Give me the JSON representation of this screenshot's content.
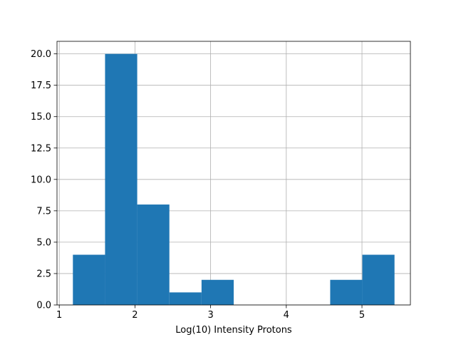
{
  "chart_data": {
    "type": "bar",
    "subtype": "histogram",
    "title": "",
    "xlabel": "Log(10) Intensity Protons",
    "ylabel": "",
    "xlim": [
      0.97,
      5.64
    ],
    "ylim": [
      0,
      21
    ],
    "grid": true,
    "legend": "none",
    "bar_color": "#1f77b4",
    "grid_color": "#b0b0b0",
    "x_ticks": [
      1,
      2,
      3,
      4,
      5
    ],
    "x_tick_labels": [
      "1",
      "2",
      "3",
      "4",
      "5"
    ],
    "y_ticks": [
      0,
      2.5,
      5,
      7.5,
      10,
      12.5,
      15,
      17.5,
      20
    ],
    "y_tick_labels": [
      "0.0",
      "2.5",
      "5.0",
      "7.5",
      "10.0",
      "12.5",
      "15.0",
      "17.5",
      "20.0"
    ],
    "bins": [
      {
        "x0": 1.18,
        "x1": 1.605,
        "count": 4
      },
      {
        "x0": 1.605,
        "x1": 2.03,
        "count": 20
      },
      {
        "x0": 2.03,
        "x1": 2.455,
        "count": 8
      },
      {
        "x0": 2.455,
        "x1": 2.88,
        "count": 1
      },
      {
        "x0": 2.88,
        "x1": 3.305,
        "count": 2
      },
      {
        "x0": 3.305,
        "x1": 3.73,
        "count": 0
      },
      {
        "x0": 3.73,
        "x1": 4.155,
        "count": 0
      },
      {
        "x0": 4.155,
        "x1": 4.58,
        "count": 0
      },
      {
        "x0": 4.58,
        "x1": 5.005,
        "count": 2
      },
      {
        "x0": 5.005,
        "x1": 5.43,
        "count": 4
      }
    ]
  }
}
